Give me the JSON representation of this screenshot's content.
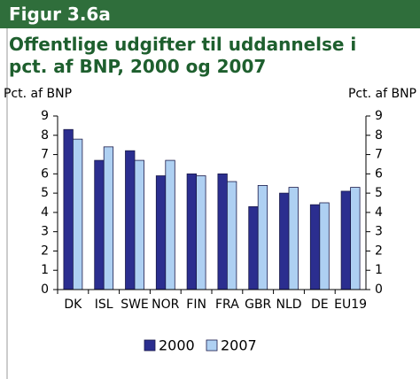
{
  "header": {
    "figure": "Figur 3.6a"
  },
  "chart_data": {
    "type": "bar",
    "title": "Offentlige udgifter til uddannelse i pct. af BNP, 2000 og 2007",
    "ylabel": "Pct. af BNP",
    "y2label": "Pct. af BNP",
    "categories": [
      "DK",
      "ISL",
      "SWE",
      "NOR",
      "FIN",
      "FRA",
      "GBR",
      "NLD",
      "DE",
      "EU19"
    ],
    "series": [
      {
        "name": "2000",
        "color": "#2b2e8f",
        "values": [
          8.3,
          6.7,
          7.2,
          5.9,
          6.0,
          6.0,
          4.3,
          5.0,
          4.4,
          5.1
        ]
      },
      {
        "name": "2007",
        "color": "#aed0f2",
        "values": [
          7.8,
          7.4,
          6.7,
          6.7,
          5.9,
          5.6,
          5.4,
          5.3,
          4.5,
          5.3
        ]
      }
    ],
    "ylim": [
      0,
      9
    ],
    "yticks": [
      0,
      1,
      2,
      3,
      4,
      5,
      6,
      7,
      8,
      9
    ],
    "y2lim": [
      0,
      9
    ],
    "y2ticks": [
      0,
      1,
      2,
      3,
      4,
      5,
      6,
      7,
      8,
      9
    ],
    "legend": "bottom"
  }
}
